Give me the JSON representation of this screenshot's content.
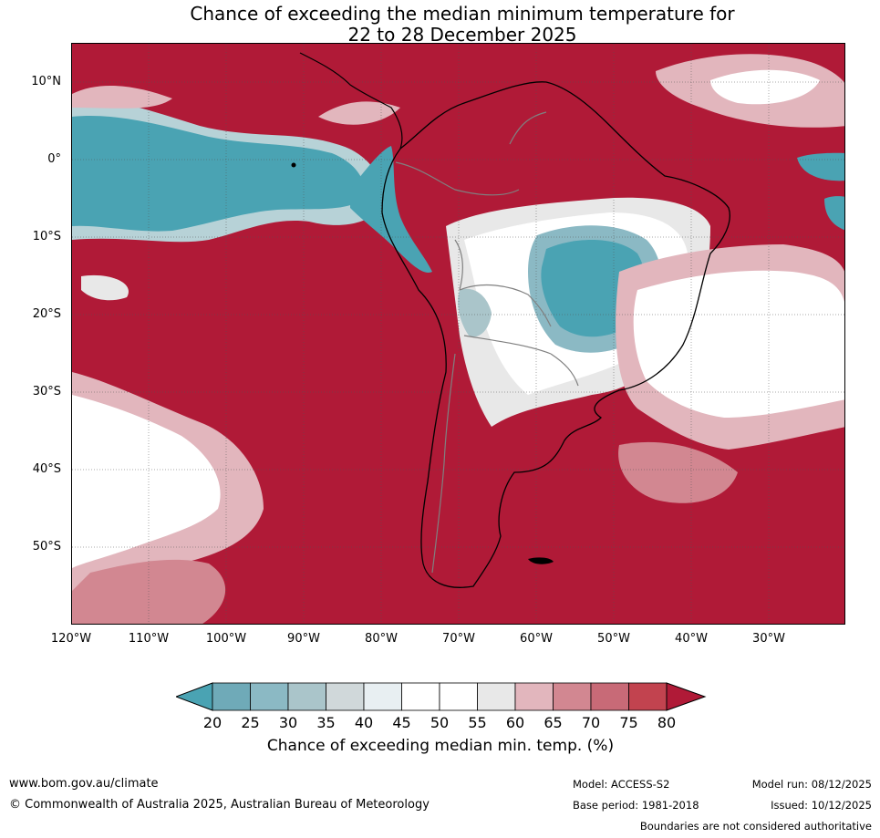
{
  "title": {
    "line1": "Chance of exceeding the median minimum temperature for",
    "line2": "22 to 28 December 2025"
  },
  "map": {
    "lat_labels": [
      "10°N",
      "0°",
      "10°S",
      "20°S",
      "30°S",
      "40°S",
      "50°S"
    ],
    "lon_labels": [
      "120°W",
      "110°W",
      "100°W",
      "90°W",
      "80°W",
      "70°W",
      "60°W",
      "50°W",
      "40°W",
      "30°W"
    ],
    "colors": {
      "high": "#b01a37",
      "low": "#4aa3b3",
      "neutral": "#ffffff",
      "country_border": "#808080",
      "coastline": "#000000"
    }
  },
  "colorbar": {
    "ticks": [
      "20",
      "25",
      "30",
      "35",
      "40",
      "45",
      "50",
      "55",
      "60",
      "65",
      "70",
      "75",
      "80"
    ],
    "colors": [
      "#4aa3b3",
      "#6faab8",
      "#8bb9c4",
      "#aac5ca",
      "#d0d8da",
      "#e8eff2",
      "#ffffff",
      "#ffffff",
      "#e8e8e8",
      "#e2b6bd",
      "#d28791",
      "#c86a77",
      "#c2434f",
      "#b01a37"
    ],
    "title": "Chance of exceeding median min. temp. (%)"
  },
  "footer": {
    "website": "www.bom.gov.au/climate",
    "copyright": "© Commonwealth of Australia 2025, Australian Bureau of Meteorology",
    "model": "Model: ACCESS-S2",
    "model_run": "Model run: 08/12/2025",
    "base_period": "Base period: 1981-2018",
    "issued": "Issued: 10/12/2025",
    "disclaimer": "Boundaries are not considered authoritative"
  }
}
